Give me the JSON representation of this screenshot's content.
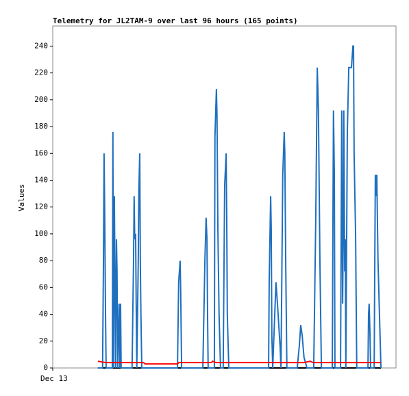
{
  "chart_data": {
    "type": "line",
    "title": "Telemetry for JL2TAM-9 over last 96 hours (165 points)",
    "y_label": "Values",
    "xlim": [
      -15.3,
      101.1
    ],
    "xticks": [
      {
        "value": -15.3,
        "label": "Dec 13"
      }
    ],
    "ylim": [
      0,
      255
    ],
    "yticks": [
      0,
      20,
      40,
      60,
      80,
      100,
      120,
      140,
      160,
      180,
      200,
      220,
      240
    ],
    "series": [
      {
        "color": "#000000",
        "x": [
          0,
          96
        ],
        "values": [
          0,
          0
        ]
      },
      {
        "color": "#1f6fbf",
        "x": [
          0,
          1.6,
          1.9,
          2.1,
          2.3,
          2.6,
          2.8,
          4.9,
          5.1,
          5.3,
          5.6,
          5.8,
          6.0,
          6.3,
          6.5,
          6.7,
          7.2,
          7.4,
          7.7,
          7.9,
          11.6,
          12.1,
          12.3,
          12.5,
          12.8,
          13.0,
          13.2,
          13.7,
          13.9,
          14.2,
          14.4,
          14.6,
          14.9,
          27.0,
          27.4,
          27.9,
          28.1,
          28.4,
          35.6,
          36.3,
          36.7,
          37.0,
          37.2,
          37.4,
          39.5,
          39.7,
          40.2,
          40.4,
          40.7,
          41.1,
          41.6,
          42.5,
          43.0,
          43.5,
          43.7,
          43.9,
          44.4,
          57.9,
          58.1,
          58.6,
          58.8,
          59.0,
          59.3,
          60.4,
          60.9,
          61.8,
          62.1,
          62.7,
          63.2,
          63.4,
          63.7,
          64.1,
          67.6,
          68.3,
          68.8,
          69.3,
          69.9,
          70.9,
          73.2,
          73.9,
          74.4,
          74.8,
          75.3,
          75.8,
          79.5,
          79.7,
          79.9,
          80.2,
          80.4,
          82.3,
          82.5,
          82.7,
          83.0,
          83.2,
          83.4,
          83.7,
          83.9,
          84.1,
          84.6,
          85.1,
          86.0,
          86.5,
          86.7,
          86.9,
          87.4,
          87.8,
          91.6,
          91.8,
          92.0,
          92.3,
          92.5,
          93.7,
          94.1,
          94.4,
          94.6,
          95.0,
          96.0
        ],
        "values": [
          0,
          0,
          80,
          160,
          120,
          40,
          0,
          0,
          176,
          0,
          128,
          64,
          0,
          96,
          72,
          0,
          48,
          0,
          48,
          0,
          0,
          80,
          128,
          96,
          100,
          48,
          0,
          80,
          132,
          160,
          80,
          40,
          0,
          0,
          64,
          80,
          56,
          0,
          0,
          80,
          112,
          96,
          40,
          0,
          0,
          172,
          208,
          188,
          104,
          40,
          0,
          0,
          136,
          160,
          112,
          40,
          0,
          0,
          64,
          128,
          104,
          24,
          0,
          64,
          48,
          16,
          0,
          144,
          176,
          160,
          80,
          0,
          0,
          16,
          32,
          24,
          8,
          0,
          0,
          112,
          224,
          192,
          80,
          0,
          0,
          100,
          192,
          144,
          0,
          0,
          96,
          192,
          48,
          96,
          192,
          72,
          96,
          0,
          176,
          224,
          224,
          240,
          240,
          160,
          100,
          0,
          0,
          40,
          48,
          24,
          0,
          0,
          144,
          128,
          144,
          80,
          0
        ]
      },
      {
        "color": "#ff0000",
        "x": [
          0,
          2.6,
          15.5,
          16,
          27,
          27.4,
          38.5,
          38.9,
          40,
          70,
          72,
          73,
          96
        ],
        "values": [
          5,
          4,
          4,
          3,
          3,
          4,
          4,
          5,
          4,
          4,
          5,
          4,
          4
        ]
      }
    ]
  }
}
